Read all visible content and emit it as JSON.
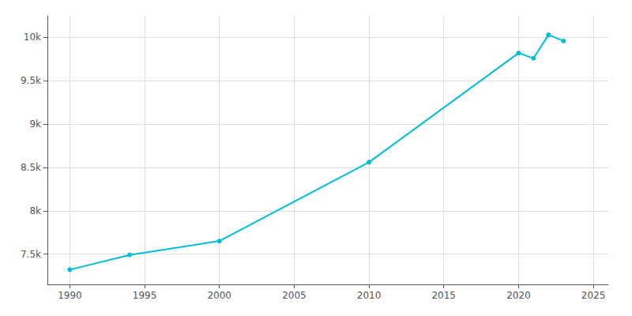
{
  "chart_data": {
    "type": "line",
    "x": [
      1990,
      1994,
      2000,
      2010,
      2020,
      2021,
      2022,
      2023
    ],
    "values": [
      7320,
      7490,
      7651,
      8560,
      9820,
      9760,
      10030,
      9960
    ],
    "color": "#00BCD4",
    "marker": "circle",
    "xlim": [
      1988.5,
      2026
    ],
    "ylim": [
      7150,
      10250
    ],
    "xticks": [
      1990,
      1995,
      2000,
      2005,
      2010,
      2015,
      2020,
      2025
    ],
    "yticks": [
      {
        "value": 7500,
        "label": "7.5k"
      },
      {
        "value": 8000,
        "label": "8k"
      },
      {
        "value": 8500,
        "label": "8.5k"
      },
      {
        "value": 9000,
        "label": "9k"
      },
      {
        "value": 9500,
        "label": "9.5k"
      },
      {
        "value": 10000,
        "label": "10k"
      }
    ],
    "grid": true
  }
}
